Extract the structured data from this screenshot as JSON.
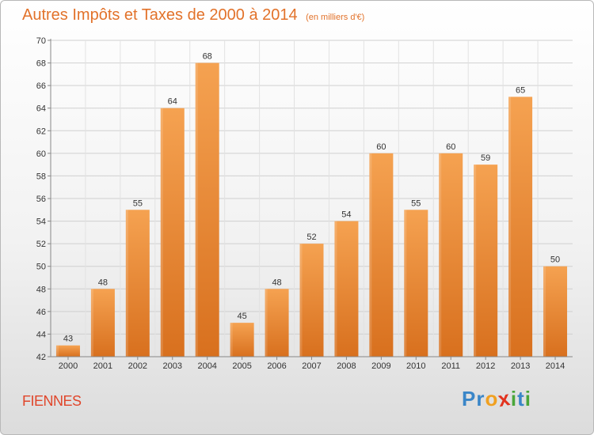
{
  "commune": "FIENNES",
  "logo": {
    "text": "Proxiti",
    "letters": [
      {
        "ch": "P",
        "color": "#3a86c8"
      },
      {
        "ch": "r",
        "color": "#3a86c8"
      },
      {
        "ch": "o",
        "color": "#f0a020"
      },
      {
        "ch": "x",
        "color": "#e2321e"
      },
      {
        "ch": "i",
        "color": "#4aa63a"
      },
      {
        "ch": "t",
        "color": "#3a86c8"
      },
      {
        "ch": "i",
        "color": "#4aa63a"
      }
    ]
  },
  "colors": {
    "title": "#e2722a",
    "bar_top": "#f5a251",
    "bar_bottom": "#d8701e",
    "commune": "#e0462b"
  },
  "chart_data": {
    "type": "bar",
    "title": "Autres Impôts et Taxes de 2000 à 2014",
    "subtitle": "(en milliers d'€)",
    "categories": [
      "2000",
      "2001",
      "2002",
      "2003",
      "2004",
      "2005",
      "2006",
      "2007",
      "2008",
      "2009",
      "2010",
      "2011",
      "2012",
      "2013",
      "2014"
    ],
    "values": [
      43,
      48,
      55,
      64,
      68,
      45,
      48,
      52,
      54,
      60,
      55,
      60,
      59,
      65,
      50
    ],
    "yticks": [
      42,
      44,
      46,
      48,
      50,
      52,
      54,
      56,
      58,
      60,
      62,
      64,
      66,
      68,
      70
    ],
    "ylim": [
      42,
      70
    ],
    "grid": true,
    "data_labels": true,
    "xlabel": "",
    "ylabel": ""
  }
}
